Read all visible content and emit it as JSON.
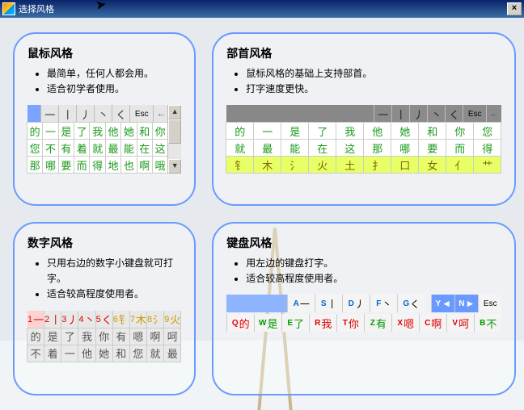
{
  "window": {
    "title": "选择风格",
    "close_x": "×"
  },
  "cards": {
    "mouse": {
      "title": "鼠标风格",
      "bullets": [
        "最简单，任何人都会用。",
        "适合初学者使用。"
      ],
      "strokes": [
        "一",
        "丨",
        "丿",
        "丶",
        "く"
      ],
      "esc": "Esc",
      "rows": [
        [
          "的",
          "一",
          "是",
          "了",
          "我",
          "他",
          "她",
          "和",
          "你"
        ],
        [
          "您",
          "不",
          "有",
          "着",
          "就",
          "最",
          "能",
          "在",
          "这"
        ],
        [
          "那",
          "哪",
          "要",
          "而",
          "得",
          "地",
          "也",
          "啊",
          "哦"
        ]
      ]
    },
    "radical": {
      "title": "部首风格",
      "bullets": [
        "鼠标风格的基础上支持部首。",
        "打字速度更快。"
      ],
      "strokes": [
        "一",
        "丨",
        "丿",
        "丶",
        "く"
      ],
      "esc": "Esc",
      "rows": [
        [
          "的",
          "一",
          "是",
          "了",
          "我",
          "他",
          "她",
          "和",
          "你",
          "您"
        ],
        [
          "就",
          "最",
          "能",
          "在",
          "这",
          "那",
          "哪",
          "要",
          "而",
          "得"
        ]
      ],
      "radicals": [
        "钅",
        "木",
        "氵",
        "火",
        "土",
        "扌",
        "口",
        "女",
        "亻",
        "艹"
      ]
    },
    "number": {
      "title": "数字风格",
      "bullets": [
        "只用右边的数字小键盘就可打字。",
        "适合较高程度使用者。"
      ],
      "numkeys": [
        {
          "n": "1",
          "c": "一",
          "col": "#d00"
        },
        {
          "n": "2",
          "c": "丨",
          "col": "#d00"
        },
        {
          "n": "3",
          "c": "丿",
          "col": "#d00"
        },
        {
          "n": "4",
          "c": "丶",
          "col": "#d00"
        },
        {
          "n": "5",
          "c": "く",
          "col": "#d00"
        },
        {
          "n": "6",
          "c": "钅",
          "col": "#c90"
        },
        {
          "n": "7",
          "c": "木",
          "col": "#c90"
        },
        {
          "n": "8",
          "c": "氵",
          "col": "#c90"
        },
        {
          "n": "9",
          "c": "火",
          "col": "#c90"
        }
      ],
      "rows": [
        [
          "的",
          "是",
          "了",
          "我",
          "你",
          "有",
          "嗯",
          "啊",
          "呵"
        ],
        [
          "不",
          "着",
          "一",
          "他",
          "她",
          "和",
          "您",
          "就",
          "最"
        ]
      ]
    },
    "keyboard": {
      "title": "键盘风格",
      "bullets": [
        "用左边的键盘打字。",
        "适合较高程度使用者。"
      ],
      "keys1": [
        {
          "k": "A",
          "c": "一",
          "col": "#06c"
        },
        {
          "k": "S",
          "c": "丨",
          "col": "#06c"
        },
        {
          "k": "D",
          "c": "丿",
          "col": "#06c"
        },
        {
          "k": "F",
          "c": "丶",
          "col": "#06c"
        },
        {
          "k": "G",
          "c": "く",
          "col": "#06c"
        }
      ],
      "nav": [
        {
          "k": "Y",
          "c": "◄",
          "bg": "#6a9aff"
        },
        {
          "k": "N",
          "c": "►",
          "bg": "#6a9aff"
        }
      ],
      "esc": "Esc",
      "keys2": [
        {
          "k": "Q",
          "c": "的",
          "col": "#d00"
        },
        {
          "k": "W",
          "c": "是",
          "col": "#090"
        },
        {
          "k": "E",
          "c": "了",
          "col": "#090"
        },
        {
          "k": "R",
          "c": "我",
          "col": "#d00"
        },
        {
          "k": "T",
          "c": "你",
          "col": "#d00"
        },
        {
          "k": "Z",
          "c": "有",
          "col": "#090"
        },
        {
          "k": "X",
          "c": "嗯",
          "col": "#d00"
        },
        {
          "k": "C",
          "c": "啊",
          "col": "#d00"
        },
        {
          "k": "V",
          "c": "呵",
          "col": "#d00"
        },
        {
          "k": "B",
          "c": "不",
          "col": "#090"
        }
      ]
    }
  }
}
